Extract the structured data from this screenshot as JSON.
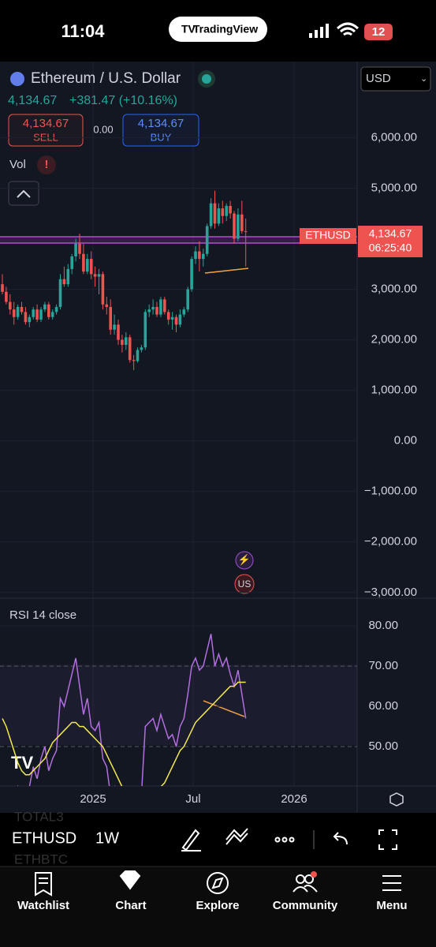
{
  "status": {
    "time": "11:04",
    "app": "TradingView",
    "battery": "12"
  },
  "header": {
    "title": "Ethereum / U.S. Dollar",
    "quote": "4,134.67",
    "change": "+381.47 (+10.16%)",
    "sell_price": "4,134.67",
    "sell": "SELL",
    "spread": "0.00",
    "buy_price": "4,134.67",
    "buy": "BUY",
    "vol": "Vol",
    "currency": "USD"
  },
  "chart": {
    "type": "candlestick",
    "symbol_tag": "ETHUSD",
    "last_price": "4,134.67",
    "countdown": "06:25:40",
    "ylim": [
      -3300,
      6600
    ],
    "yticks": [
      {
        "value": 6000,
        "label": "6,000.00"
      },
      {
        "value": 5000,
        "label": "5,000.00"
      },
      {
        "value": 3000,
        "label": "3,000.00"
      },
      {
        "value": 2000,
        "label": "2,000.00"
      },
      {
        "value": 1000,
        "label": "1,000.00"
      },
      {
        "value": 0,
        "label": "0.00"
      },
      {
        "value": -1000,
        "label": "−1,000.00"
      },
      {
        "value": -2000,
        "label": "−2,000.00"
      },
      {
        "value": -3000,
        "label": "−3,000.00"
      }
    ],
    "up_color": "#26a69a",
    "down_color": "#ef5350",
    "candles": [
      [
        3100,
        3300,
        2900,
        2950
      ],
      [
        2950,
        3050,
        2700,
        2750
      ],
      [
        2750,
        2900,
        2500,
        2600
      ],
      [
        2600,
        2750,
        2300,
        2450
      ],
      [
        2450,
        2700,
        2400,
        2650
      ],
      [
        2650,
        2750,
        2500,
        2550
      ],
      [
        2550,
        2650,
        2300,
        2350
      ],
      [
        2350,
        2500,
        2250,
        2450
      ],
      [
        2450,
        2650,
        2400,
        2600
      ],
      [
        2600,
        2700,
        2350,
        2400
      ],
      [
        2400,
        2650,
        2350,
        2600
      ],
      [
        2600,
        2750,
        2550,
        2700
      ],
      [
        2700,
        2750,
        2400,
        2450
      ],
      [
        2450,
        2600,
        2400,
        2550
      ],
      [
        2550,
        2700,
        2500,
        2650
      ],
      [
        2650,
        3300,
        2600,
        3200
      ],
      [
        3200,
        3450,
        3050,
        3100
      ],
      [
        3100,
        3500,
        3050,
        3400
      ],
      [
        3400,
        3700,
        3300,
        3650
      ],
      [
        3650,
        4000,
        3550,
        3900
      ],
      [
        3900,
        4100,
        3600,
        3700
      ],
      [
        3700,
        3900,
        3300,
        3350
      ],
      [
        3350,
        3700,
        3300,
        3600
      ],
      [
        3600,
        3750,
        3200,
        3300
      ],
      [
        3300,
        3450,
        3050,
        3250
      ],
      [
        3250,
        3400,
        2900,
        3300
      ],
      [
        3300,
        3350,
        2600,
        2700
      ],
      [
        2700,
        2850,
        2500,
        2650
      ],
      [
        2650,
        2800,
        2100,
        2200
      ],
      [
        2200,
        2500,
        2100,
        2300
      ],
      [
        2300,
        2400,
        1900,
        2000
      ],
      [
        2000,
        2100,
        1750,
        1900
      ],
      [
        1900,
        2150,
        1800,
        2050
      ],
      [
        2050,
        2100,
        1550,
        1600
      ],
      [
        1600,
        1700,
        1400,
        1580
      ],
      [
        1580,
        1850,
        1550,
        1800
      ],
      [
        1800,
        1900,
        1750,
        1850
      ],
      [
        1850,
        2600,
        1800,
        2550
      ],
      [
        2550,
        2700,
        2450,
        2600
      ],
      [
        2600,
        2800,
        2500,
        2650
      ],
      [
        2650,
        2750,
        2450,
        2500
      ],
      [
        2500,
        2850,
        2450,
        2800
      ],
      [
        2800,
        2850,
        2500,
        2550
      ],
      [
        2550,
        2600,
        2300,
        2400
      ],
      [
        2400,
        2550,
        2200,
        2450
      ],
      [
        2450,
        2500,
        2150,
        2300
      ],
      [
        2300,
        2600,
        2250,
        2500
      ],
      [
        2500,
        2650,
        2450,
        2600
      ],
      [
        2600,
        3050,
        2550,
        3000
      ],
      [
        3000,
        3650,
        2950,
        3600
      ],
      [
        3600,
        3850,
        3500,
        3750
      ],
      [
        3750,
        3950,
        3350,
        3600
      ],
      [
        3600,
        3800,
        3450,
        3700
      ],
      [
        3700,
        4300,
        3650,
        4250
      ],
      [
        4250,
        4800,
        4200,
        4700
      ],
      [
        4700,
        4950,
        4200,
        4300
      ],
      [
        4300,
        4700,
        4250,
        4600
      ],
      [
        4600,
        4750,
        4300,
        4450
      ],
      [
        4450,
        4700,
        4350,
        4650
      ],
      [
        4650,
        4750,
        4400,
        4500
      ],
      [
        4500,
        4550,
        3900,
        4000
      ],
      [
        4000,
        4600,
        3950,
        4480
      ],
      [
        4480,
        4750,
        4100,
        4150
      ],
      [
        4150,
        4400,
        3450,
        4134.67
      ]
    ],
    "xlabels": [
      "2025",
      "Jul",
      "2026"
    ]
  },
  "rsi": {
    "title": "RSI 14 close",
    "ylim": [
      40.2,
      86.5
    ],
    "yticks": [
      {
        "value": 80,
        "label": "80.00"
      },
      {
        "value": 70,
        "label": "70.00"
      },
      {
        "value": 60,
        "label": "60.00"
      },
      {
        "value": 50,
        "label": "50.00"
      }
    ],
    "line_color": "#b36ee0",
    "ma_color": "#f2e94e",
    "values": [
      40,
      38,
      35,
      33,
      40,
      38,
      36,
      40,
      45,
      42,
      47,
      50,
      44,
      47,
      49,
      62,
      60,
      64,
      68,
      72,
      65,
      58,
      62,
      55,
      54,
      56,
      47,
      45,
      38,
      40,
      35,
      33,
      37,
      30,
      28,
      36,
      38,
      55,
      56,
      57,
      54,
      58,
      55,
      52,
      53,
      50,
      55,
      57,
      63,
      70,
      72,
      69,
      70,
      74,
      78,
      70,
      73,
      70,
      72,
      68,
      65,
      69,
      63,
      57
    ],
    "ma": [
      57,
      55,
      52,
      49,
      46,
      44,
      43,
      43,
      44,
      45,
      46,
      47,
      49,
      51,
      52,
      53,
      54,
      55,
      56,
      56,
      55,
      55,
      54,
      53,
      52,
      51,
      50,
      48,
      46,
      44,
      42,
      40,
      39,
      38,
      37,
      36,
      36,
      36,
      37,
      38,
      39,
      40,
      41,
      43,
      45,
      47,
      49,
      50,
      52,
      54,
      56,
      57,
      58,
      59,
      60,
      61,
      62,
      63,
      64,
      65,
      65,
      66,
      66,
      66
    ]
  },
  "toolbar": {
    "symbol": "ETHUSD",
    "interval": "1W",
    "ghost_top": "TOTAL3",
    "ghost_bottom": "ETHBTC"
  },
  "nav": [
    "Watchlist",
    "Chart",
    "Explore",
    "Community",
    "Menu"
  ]
}
